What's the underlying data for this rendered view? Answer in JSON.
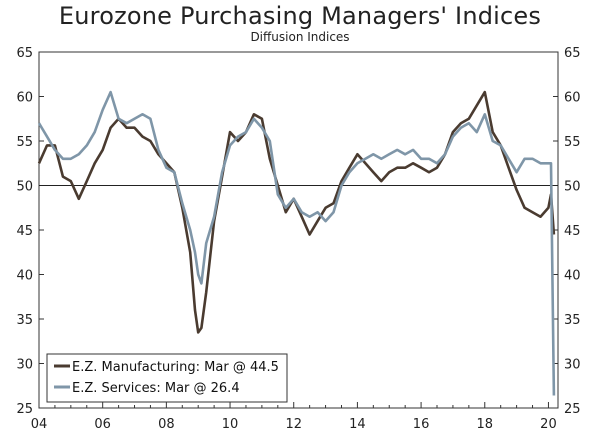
{
  "chart_data": {
    "type": "line",
    "title": "Eurozone Purchasing Managers' Indices",
    "subtitle": "Diffusion Indices",
    "xlabel": "",
    "ylabel": "",
    "xlim": [
      2004,
      2020.3
    ],
    "ylim": [
      25,
      65
    ],
    "x_ticks": [
      2004,
      2006,
      2008,
      2010,
      2012,
      2014,
      2016,
      2018,
      2020
    ],
    "x_tick_labels": [
      "04",
      "06",
      "08",
      "10",
      "12",
      "14",
      "16",
      "18",
      "20"
    ],
    "y_ticks": [
      25,
      30,
      35,
      40,
      45,
      50,
      55,
      60,
      65
    ],
    "reference_line": 50,
    "grid": false,
    "legend_position": "bottom-left",
    "series": [
      {
        "name": "E.Z. Manufacturing: Mar @ 44.5",
        "color": "#4a3b30",
        "x": [
          2004.0,
          2004.25,
          2004.5,
          2004.75,
          2005.0,
          2005.25,
          2005.5,
          2005.75,
          2006.0,
          2006.25,
          2006.5,
          2006.75,
          2007.0,
          2007.25,
          2007.5,
          2007.75,
          2008.0,
          2008.25,
          2008.5,
          2008.75,
          2008.9,
          2009.0,
          2009.1,
          2009.25,
          2009.5,
          2009.75,
          2010.0,
          2010.25,
          2010.5,
          2010.75,
          2011.0,
          2011.25,
          2011.5,
          2011.75,
          2012.0,
          2012.25,
          2012.5,
          2012.75,
          2013.0,
          2013.25,
          2013.5,
          2013.75,
          2014.0,
          2014.25,
          2014.5,
          2014.75,
          2015.0,
          2015.25,
          2015.5,
          2015.75,
          2016.0,
          2016.25,
          2016.5,
          2016.75,
          2017.0,
          2017.25,
          2017.5,
          2017.75,
          2018.0,
          2018.25,
          2018.5,
          2018.75,
          2019.0,
          2019.25,
          2019.5,
          2019.75,
          2020.0,
          2020.08,
          2020.17
        ],
        "y": [
          52.5,
          54.5,
          54.5,
          51.0,
          50.5,
          48.5,
          50.5,
          52.5,
          54.0,
          56.5,
          57.5,
          56.5,
          56.5,
          55.5,
          55.0,
          53.5,
          52.5,
          51.5,
          47.5,
          42.5,
          36.0,
          33.5,
          34.0,
          38.0,
          46.0,
          51.0,
          56.0,
          55.0,
          56.0,
          58.0,
          57.5,
          53.0,
          50.0,
          47.0,
          48.5,
          46.5,
          44.5,
          46.0,
          47.5,
          48.0,
          50.5,
          52.0,
          53.5,
          52.5,
          51.5,
          50.5,
          51.5,
          52.0,
          52.0,
          52.5,
          52.0,
          51.5,
          52.0,
          53.5,
          56.0,
          57.0,
          57.5,
          59.0,
          60.5,
          56.0,
          54.5,
          52.0,
          49.5,
          47.5,
          47.0,
          46.5,
          47.5,
          49.0,
          44.5
        ]
      },
      {
        "name": "E.Z. Services: Mar @ 26.4",
        "color": "#7f96a8",
        "x": [
          2004.0,
          2004.25,
          2004.5,
          2004.75,
          2005.0,
          2005.25,
          2005.5,
          2005.75,
          2006.0,
          2006.25,
          2006.5,
          2006.75,
          2007.0,
          2007.25,
          2007.5,
          2007.75,
          2008.0,
          2008.25,
          2008.5,
          2008.75,
          2008.9,
          2009.0,
          2009.1,
          2009.25,
          2009.5,
          2009.75,
          2010.0,
          2010.25,
          2010.5,
          2010.75,
          2011.0,
          2011.25,
          2011.5,
          2011.75,
          2012.0,
          2012.25,
          2012.5,
          2012.75,
          2013.0,
          2013.25,
          2013.5,
          2013.75,
          2014.0,
          2014.25,
          2014.5,
          2014.75,
          2015.0,
          2015.25,
          2015.5,
          2015.75,
          2016.0,
          2016.25,
          2016.5,
          2016.75,
          2017.0,
          2017.25,
          2017.5,
          2017.75,
          2018.0,
          2018.25,
          2018.5,
          2018.75,
          2019.0,
          2019.25,
          2019.5,
          2019.75,
          2020.0,
          2020.08,
          2020.17
        ],
        "y": [
          57.0,
          55.5,
          54.0,
          53.0,
          53.0,
          53.5,
          54.5,
          56.0,
          58.5,
          60.5,
          57.5,
          57.0,
          57.5,
          58.0,
          57.5,
          54.0,
          52.0,
          51.5,
          48.0,
          45.0,
          42.5,
          40.0,
          39.0,
          43.5,
          46.5,
          51.5,
          54.5,
          55.5,
          56.0,
          57.5,
          56.5,
          55.0,
          49.0,
          47.5,
          48.5,
          47.0,
          46.5,
          47.0,
          46.0,
          47.0,
          50.0,
          51.5,
          52.5,
          53.0,
          53.5,
          53.0,
          53.5,
          54.0,
          53.5,
          54.0,
          53.0,
          53.0,
          52.5,
          53.5,
          55.5,
          56.5,
          57.0,
          56.0,
          58.0,
          55.0,
          54.5,
          53.0,
          51.5,
          53.0,
          53.0,
          52.5,
          52.5,
          52.5,
          26.4
        ]
      }
    ]
  }
}
